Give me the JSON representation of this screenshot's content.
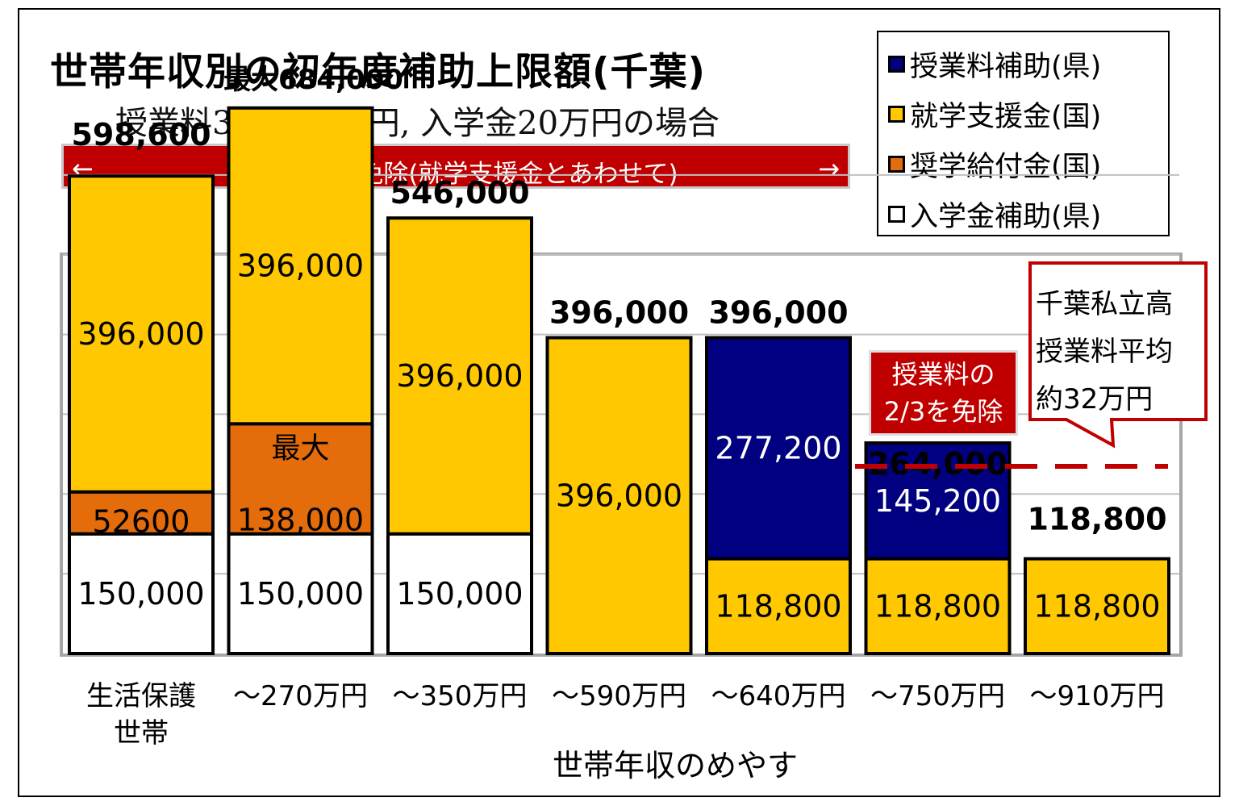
{
  "title": "世帯年収別の初年度補助上限額(千葉)",
  "subtitle": "授業料39万6000円, 入学金20万円の場合",
  "banner": {
    "left_arrow": "←",
    "text": "授業料全額免除(就学支援金とあわせて)",
    "right_arrow": "→"
  },
  "legend": [
    {
      "label": "授業料補助(県)",
      "color": "#000080"
    },
    {
      "label": "就学支援金(国)",
      "color": "#ffc800"
    },
    {
      "label": "奨学給付金(国)",
      "color": "#e46c0a"
    },
    {
      "label": "入学金補助(県)",
      "color": "#ffffff"
    }
  ],
  "callout_red": {
    "line1": "授業料の",
    "line2": "2/3を免除"
  },
  "annotation": {
    "line1": "千葉私立高",
    "line2": "授業料平均",
    "line3": "約32万円",
    "reference_value": 320000
  },
  "chart_data": {
    "type": "bar",
    "stacked": true,
    "title": "世帯年収別の初年度補助上限額(千葉)",
    "subtitle": "授業料39万6000円, 入学金20万円の場合",
    "xlabel": "世帯年収のめやす",
    "ylabel": "",
    "ylim": [
      0,
      700000
    ],
    "grid": true,
    "legend_position": "top-right",
    "categories": [
      {
        "line1": "生活保護",
        "line2": "世帯"
      },
      {
        "line1": "～270万円",
        "line2": ""
      },
      {
        "line1": "～350万円",
        "line2": ""
      },
      {
        "line1": "～590万円",
        "line2": ""
      },
      {
        "line1": "～640万円",
        "line2": ""
      },
      {
        "line1": "～750万円",
        "line2": ""
      },
      {
        "line1": "～910万円",
        "line2": ""
      }
    ],
    "series": [
      {
        "name": "入学金補助(県)",
        "color": "#ffffff",
        "text_color": "#000000",
        "values": [
          150000,
          150000,
          150000,
          0,
          0,
          0,
          0
        ],
        "labels": [
          "150,000",
          "150,000",
          "150,000",
          "",
          "",
          "",
          ""
        ]
      },
      {
        "name": "奨学給付金(国)",
        "color": "#e46c0a",
        "text_color": "#000000",
        "values": [
          52600,
          138000,
          0,
          0,
          0,
          0,
          0
        ],
        "labels": [
          "52600",
          "138,000",
          "",
          "",
          "",
          "",
          ""
        ],
        "labels_top": [
          "",
          "最大",
          "",
          "",
          "",
          "",
          ""
        ]
      },
      {
        "name": "就学支援金(国)",
        "color": "#ffc800",
        "text_color": "#000000",
        "values": [
          396000,
          396000,
          396000,
          396000,
          118800,
          118800,
          118800
        ],
        "labels": [
          "396,000",
          "396,000",
          "396,000",
          "396,000",
          "118,800",
          "118,800",
          "118,800"
        ]
      },
      {
        "name": "授業料補助(県)",
        "color": "#000080",
        "text_color": "#ffffff",
        "values": [
          0,
          0,
          0,
          0,
          277200,
          145200,
          0
        ],
        "labels": [
          "",
          "",
          "",
          "",
          "277,200",
          "145,200",
          ""
        ]
      }
    ],
    "totals": [
      "598,600",
      "最大684,000",
      "546,000",
      "396,000",
      "396,000",
      "264,000",
      "118,800"
    ],
    "reference_line": {
      "value": 320000,
      "color": "#c00000",
      "style": "dashed"
    }
  }
}
